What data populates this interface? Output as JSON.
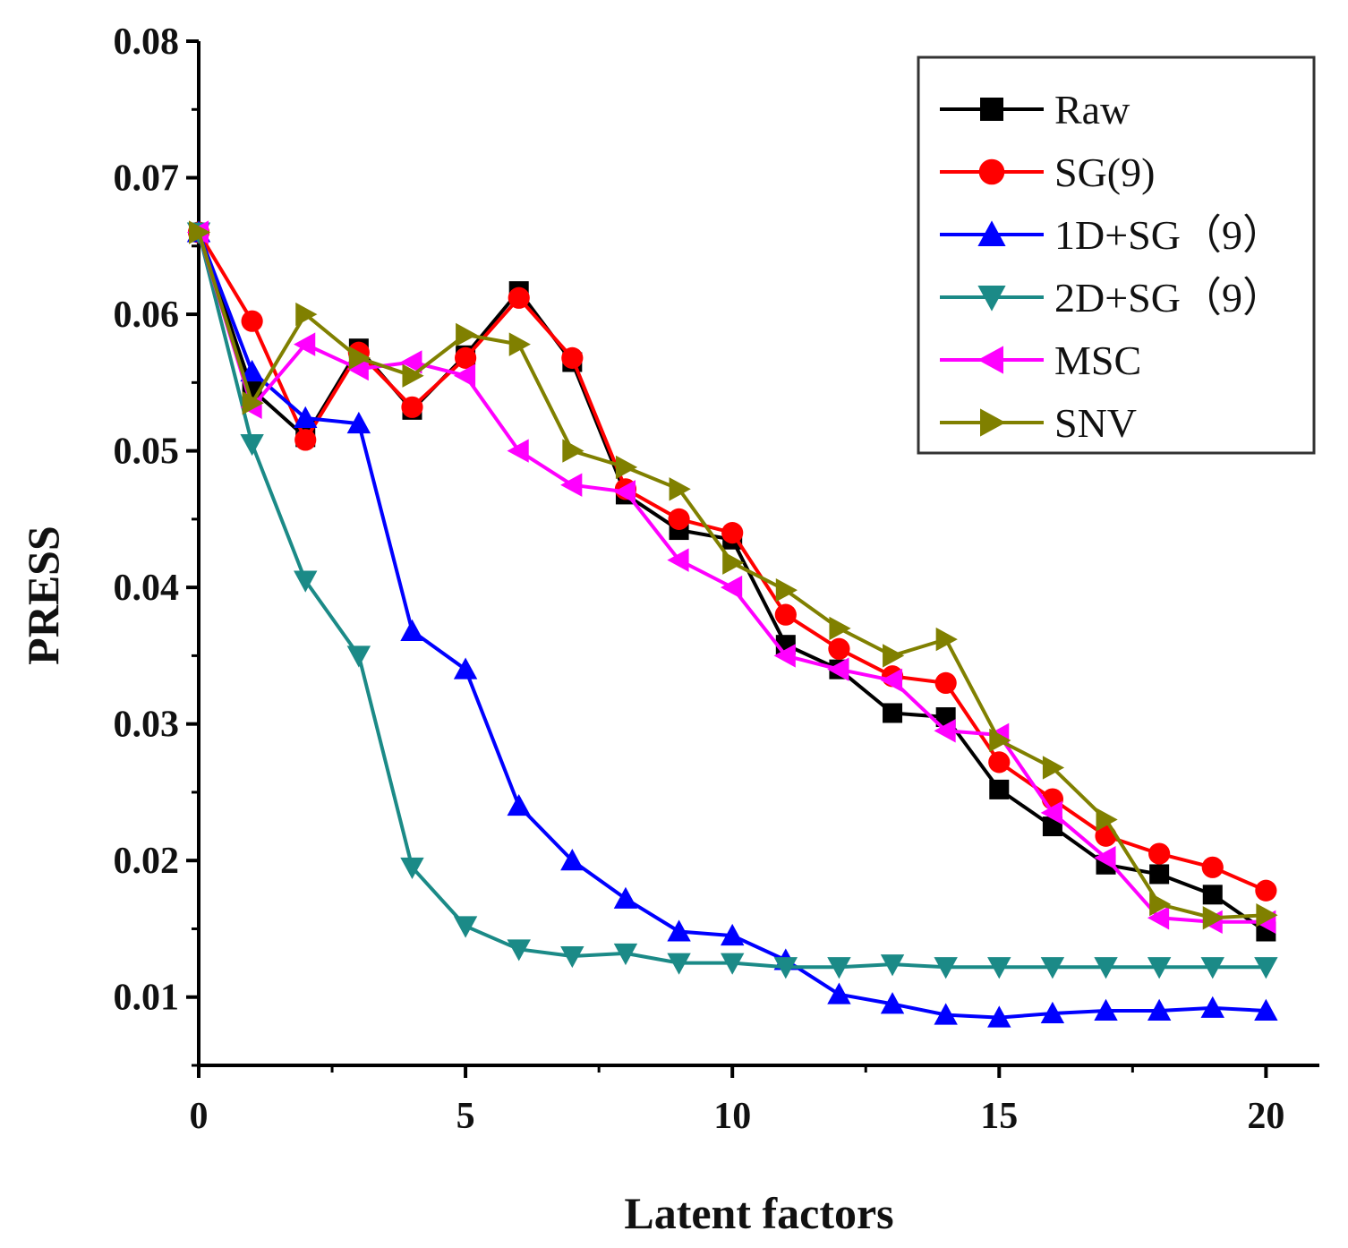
{
  "chart_data": {
    "type": "line",
    "title": "",
    "xlabel": "Latent factors",
    "ylabel": "PRESS",
    "xlim": [
      0,
      21
    ],
    "ylim": [
      0.005,
      0.08
    ],
    "xticks": [
      0,
      5,
      10,
      15,
      20
    ],
    "xtick_labels": [
      "0",
      "5",
      "10",
      "15",
      "20"
    ],
    "yticks": [
      0.01,
      0.02,
      0.03,
      0.04,
      0.05,
      0.06,
      0.07,
      0.08
    ],
    "ytick_labels": [
      "0.01",
      "0.02",
      "0.03",
      "0.04",
      "0.05",
      "0.06",
      "0.07",
      "0.08"
    ],
    "legend_position": "top-right",
    "x": [
      0,
      1,
      2,
      3,
      4,
      5,
      6,
      7,
      8,
      9,
      10,
      11,
      12,
      13,
      14,
      15,
      16,
      17,
      18,
      19,
      20
    ],
    "series": [
      {
        "name": "Raw",
        "color": "#000000",
        "marker": "square",
        "values": [
          0.066,
          0.0545,
          0.051,
          0.0575,
          0.053,
          0.057,
          0.0617,
          0.0565,
          0.0468,
          0.0442,
          0.0435,
          0.0358,
          0.034,
          0.0308,
          0.0305,
          0.0252,
          0.0225,
          0.0197,
          0.019,
          0.0175,
          0.0148
        ]
      },
      {
        "name": "SG(9)",
        "color": "#ff0000",
        "marker": "circle",
        "values": [
          0.066,
          0.0595,
          0.0508,
          0.0572,
          0.0532,
          0.0568,
          0.0612,
          0.0568,
          0.0472,
          0.045,
          0.044,
          0.038,
          0.0355,
          0.0335,
          0.033,
          0.0272,
          0.0245,
          0.0218,
          0.0205,
          0.0195,
          0.0178
        ]
      },
      {
        "name": "1D+SG（9）",
        "color": "#0000ff",
        "marker": "triangle-up",
        "values": [
          0.066,
          0.0558,
          0.0524,
          0.052,
          0.0368,
          0.034,
          0.024,
          0.02,
          0.0172,
          0.0148,
          0.0145,
          0.0127,
          0.0102,
          0.0095,
          0.0087,
          0.0085,
          0.0088,
          0.009,
          0.009,
          0.0092,
          0.009
        ]
      },
      {
        "name": "2D+SG（9）",
        "color": "#1b8a87",
        "marker": "triangle-down",
        "values": [
          0.066,
          0.0505,
          0.0405,
          0.035,
          0.0195,
          0.0152,
          0.0135,
          0.013,
          0.0132,
          0.0125,
          0.0125,
          0.0122,
          0.0122,
          0.0124,
          0.0122,
          0.0122,
          0.0122,
          0.0122,
          0.0122,
          0.0122,
          0.0122
        ]
      },
      {
        "name": "MSC",
        "color": "#ff00ff",
        "marker": "triangle-left",
        "values": [
          0.066,
          0.0532,
          0.0578,
          0.056,
          0.0565,
          0.0555,
          0.05,
          0.0475,
          0.047,
          0.042,
          0.04,
          0.035,
          0.034,
          0.0332,
          0.0295,
          0.0292,
          0.0235,
          0.0202,
          0.0158,
          0.0155,
          0.0155
        ]
      },
      {
        "name": "SNV",
        "color": "#808000",
        "marker": "triangle-right",
        "values": [
          0.066,
          0.0535,
          0.06,
          0.0568,
          0.0555,
          0.0585,
          0.0578,
          0.05,
          0.0488,
          0.0472,
          0.0418,
          0.0398,
          0.037,
          0.035,
          0.0362,
          0.0288,
          0.0268,
          0.023,
          0.0168,
          0.0158,
          0.016
        ]
      }
    ]
  }
}
